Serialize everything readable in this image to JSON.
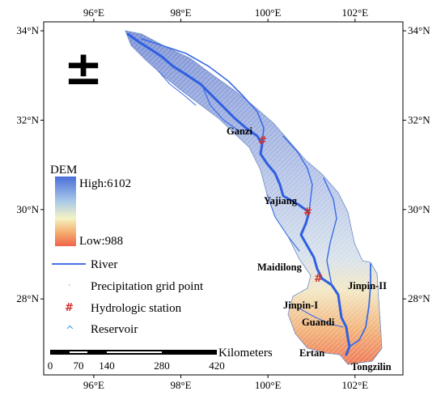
{
  "map": {
    "north_symbol": "±",
    "lon_ticks": [
      "96°E",
      "98°E",
      "100°E",
      "102°E"
    ],
    "lat_ticks": [
      "34°N",
      "32°N",
      "30°N",
      "28°N"
    ],
    "lon_range": [
      94.85,
      103.1
    ],
    "lat_range": [
      26.3,
      34.2
    ],
    "colors": {
      "dem_high": "#4a6fd8",
      "dem_mid": "#f5f3c4",
      "dem_low": "#f0624a",
      "river": "#2f5fe0",
      "station": "#d0302a",
      "reservoir": "#3aa0e0"
    }
  },
  "legend": {
    "dem_title": "DEM",
    "dem_high": "High:6102",
    "dem_low": "Low:988",
    "river": "River",
    "grid_point": "Precipitation grid point",
    "station": "Hydrologic station",
    "reservoir": "Reservoir",
    "station_symbol": "#",
    "reservoir_symbol": "^"
  },
  "scale_bar": {
    "unit": "Kilometers",
    "ticks": [
      "0",
      "70",
      "140",
      "280",
      "420"
    ]
  },
  "places": [
    {
      "name": "Ganzi",
      "kind": "station"
    },
    {
      "name": "Yajiang",
      "kind": "station"
    },
    {
      "name": "Maidilong",
      "kind": "station"
    },
    {
      "name": "Jinpin-II",
      "kind": "reservoir"
    },
    {
      "name": "Jinpin-I",
      "kind": "reservoir"
    },
    {
      "name": "Guandi",
      "kind": "reservoir"
    },
    {
      "name": "Ertan",
      "kind": "reservoir"
    },
    {
      "name": "Tongzilin",
      "kind": "reservoir"
    }
  ]
}
